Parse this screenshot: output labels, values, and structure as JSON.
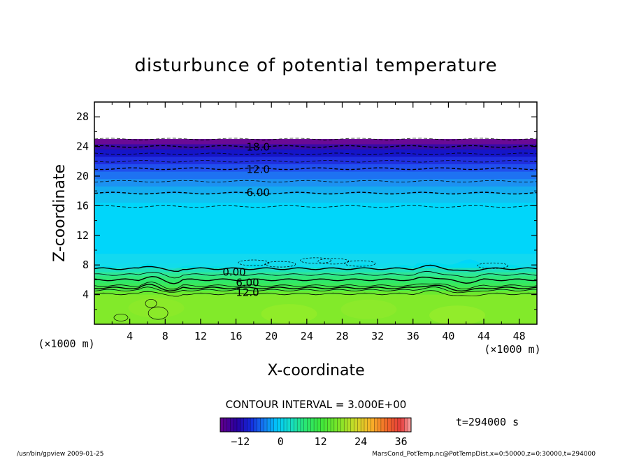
{
  "chart_data": {
    "type": "heatmap",
    "title": "disturbunce of potential temperature",
    "xlabel": "X-coordinate",
    "ylabel": "Z-coordinate",
    "x_units": "(×1000 m)",
    "z_units": "(×1000 m)",
    "xlim": [
      0,
      50
    ],
    "ylim": [
      0,
      30
    ],
    "x_ticks": [
      "4",
      "8",
      "12",
      "16",
      "20",
      "24",
      "28",
      "32",
      "36",
      "40",
      "44",
      "48"
    ],
    "y_ticks": [
      "4",
      "8",
      "12",
      "16",
      "20",
      "24",
      "28"
    ],
    "contour_interval_text": "CONTOUR INTERVAL = 3.000E+00",
    "time_text": "t=294000 s",
    "colorbar": {
      "range": [
        -18,
        39
      ],
      "tick_labels": [
        "−12",
        "0",
        "12",
        "24",
        "36"
      ],
      "tick_values": [
        -12,
        0,
        12,
        24,
        36
      ]
    },
    "contour_labels": [
      {
        "text": "18.0",
        "value": -18,
        "x": 18.5,
        "z": 24.0
      },
      {
        "text": "12.0",
        "value": -12,
        "x": 18.5,
        "z": 21.0
      },
      {
        "text": "6.00",
        "value": -6,
        "x": 18.5,
        "z": 17.9
      },
      {
        "text": "0.00",
        "value": 0,
        "x": 15.8,
        "z": 7.1
      },
      {
        "text": "6.00",
        "value": 6,
        "x": 17.3,
        "z": 5.7
      },
      {
        "text": "12.0",
        "value": 12,
        "x": 17.3,
        "z": 4.4
      }
    ],
    "dashed_contour_levels_z": [
      25.0,
      24.0,
      23.0,
      22.0,
      21.0,
      19.3,
      17.7,
      15.9
    ],
    "solid_contour_levels_z": [
      7.5,
      6.7,
      6.0,
      5.2,
      4.9,
      4.6,
      4.1
    ],
    "field_layers": [
      {
        "z_top": 25.0,
        "color": "#6a0a96"
      },
      {
        "z_top": 24.3,
        "color": "#3a0aa8"
      },
      {
        "z_top": 23.6,
        "color": "#1515c8"
      },
      {
        "z_top": 22.6,
        "color": "#1f2fe0"
      },
      {
        "z_top": 21.6,
        "color": "#2050ee"
      },
      {
        "z_top": 20.6,
        "color": "#1e72f2"
      },
      {
        "z_top": 19.6,
        "color": "#1c92f2"
      },
      {
        "z_top": 18.6,
        "color": "#14acf0"
      },
      {
        "z_top": 17.6,
        "color": "#10c2f2"
      },
      {
        "z_top": 16.4,
        "color": "#00d6fa"
      },
      {
        "z_top": 8.2,
        "color": "#00dcf0"
      },
      {
        "z_top": 7.6,
        "color": "#1ee0b8"
      },
      {
        "z_top": 7.0,
        "color": "#2ee896"
      },
      {
        "z_top": 6.5,
        "color": "#30e87a"
      },
      {
        "z_top": 6.0,
        "color": "#30e868"
      },
      {
        "z_top": 5.5,
        "color": "#3ce858"
      },
      {
        "z_top": 5.0,
        "color": "#4aea48"
      },
      {
        "z_top": 4.5,
        "color": "#6aea30"
      },
      {
        "z_top": 4.0,
        "color": "#82ea2a"
      }
    ]
  },
  "footer": {
    "left": "/usr/bin/gpview   2009-01-25",
    "right": "MarsCond_PotTemp.nc@PotTempDist,x=0:50000,z=0:30000,t=294000"
  }
}
